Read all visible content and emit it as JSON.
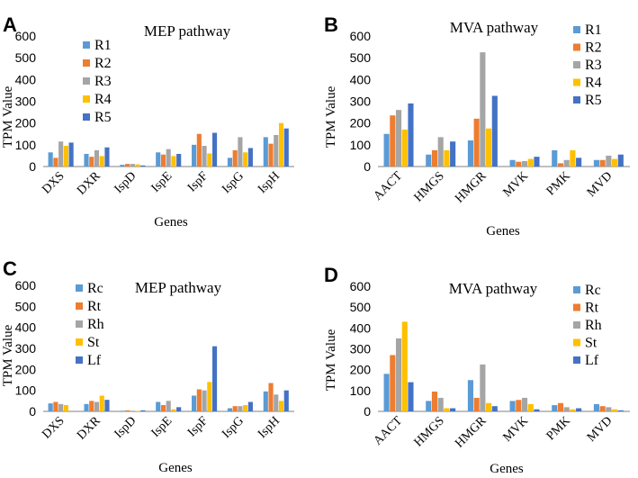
{
  "colors": {
    "s1": "#5B9BD5",
    "s2": "#ED7D31",
    "s3": "#A5A5A5",
    "s4": "#FFC000",
    "s5": "#4472C4"
  },
  "chart_data": [
    {
      "panel": "A",
      "type": "bar",
      "title": "MEP pathway",
      "xlabel": "Genes",
      "ylabel": "TPM Value",
      "ylim": [
        0,
        600
      ],
      "yticks": [
        "0",
        "100",
        "200",
        "300",
        "400",
        "500",
        "600"
      ],
      "categories": [
        "DXS",
        "DXR",
        "IspD",
        "IspE",
        "IspF",
        "IspG",
        "IspH"
      ],
      "series": [
        {
          "name": "R1",
          "values": [
            65,
            58,
            8,
            65,
            100,
            40,
            135
          ]
        },
        {
          "name": "R2",
          "values": [
            40,
            45,
            12,
            55,
            150,
            75,
            105
          ]
        },
        {
          "name": "R3",
          "values": [
            115,
            75,
            12,
            80,
            95,
            135,
            145
          ]
        },
        {
          "name": "R4",
          "values": [
            95,
            48,
            10,
            48,
            60,
            65,
            200
          ]
        },
        {
          "name": "R5",
          "values": [
            110,
            88,
            5,
            58,
            155,
            85,
            175
          ]
        }
      ]
    },
    {
      "panel": "B",
      "type": "bar",
      "title": "MVA pathway",
      "xlabel": "Genes",
      "ylabel": "TPM Value",
      "ylim": [
        0,
        600
      ],
      "yticks": [
        "0",
        "100",
        "200",
        "300",
        "400",
        "500",
        "600"
      ],
      "categories": [
        "AACT",
        "HMGS",
        "HMGR",
        "MVK",
        "PMK",
        "MVD"
      ],
      "series": [
        {
          "name": "R1",
          "values": [
            150,
            55,
            120,
            30,
            75,
            30
          ]
        },
        {
          "name": "R2",
          "values": [
            235,
            75,
            220,
            22,
            15,
            30
          ]
        },
        {
          "name": "R3",
          "values": [
            260,
            135,
            525,
            25,
            30,
            50
          ]
        },
        {
          "name": "R4",
          "values": [
            170,
            75,
            175,
            35,
            75,
            35
          ]
        },
        {
          "name": "R5",
          "values": [
            290,
            115,
            325,
            45,
            40,
            55
          ]
        }
      ]
    },
    {
      "panel": "C",
      "type": "bar",
      "title": "MEP pathway",
      "xlabel": "Genes",
      "ylabel": "TPM Value",
      "ylim": [
        0,
        600
      ],
      "yticks": [
        "0",
        "100",
        "200",
        "300",
        "400",
        "500",
        "600"
      ],
      "categories": [
        "DXS",
        "DXR",
        "IspD",
        "IspE",
        "IspF",
        "IspG",
        "IspH"
      ],
      "series": [
        {
          "name": "Rc",
          "values": [
            38,
            35,
            3,
            45,
            75,
            15,
            95
          ]
        },
        {
          "name": "Rt",
          "values": [
            45,
            50,
            5,
            30,
            105,
            25,
            135
          ]
        },
        {
          "name": "Rh",
          "values": [
            35,
            45,
            3,
            50,
            100,
            25,
            80
          ]
        },
        {
          "name": "St",
          "values": [
            30,
            75,
            2,
            10,
            140,
            30,
            50
          ]
        },
        {
          "name": "Lf",
          "values": [
            0,
            55,
            5,
            20,
            310,
            45,
            100
          ]
        }
      ]
    },
    {
      "panel": "D",
      "type": "bar",
      "title": "MVA pathway",
      "xlabel": "Genes",
      "ylabel": "TPM Value",
      "ylim": [
        0,
        600
      ],
      "yticks": [
        "0",
        "100",
        "200",
        "300",
        "400",
        "500",
        "600"
      ],
      "categories": [
        "AACT",
        "HMGS",
        "HMGR",
        "MVK",
        "PMK",
        "MVD"
      ],
      "series": [
        {
          "name": "Rc",
          "values": [
            180,
            50,
            150,
            50,
            30,
            35
          ]
        },
        {
          "name": "Rt",
          "values": [
            270,
            95,
            65,
            55,
            40,
            25
          ]
        },
        {
          "name": "Rh",
          "values": [
            350,
            65,
            225,
            65,
            20,
            20
          ]
        },
        {
          "name": "St",
          "values": [
            430,
            15,
            40,
            35,
            10,
            10
          ]
        },
        {
          "name": "Lf",
          "values": [
            140,
            15,
            25,
            10,
            15,
            5
          ]
        }
      ]
    }
  ]
}
